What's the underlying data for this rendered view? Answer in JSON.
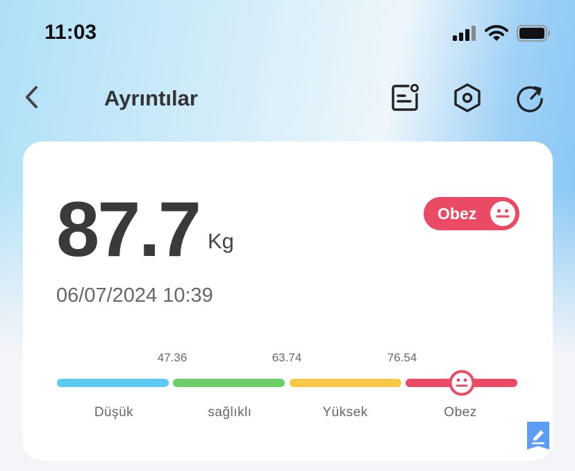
{
  "status_bar": {
    "time": "11:03"
  },
  "nav": {
    "title": "Ayrıntılar",
    "icons": [
      "back-arrow-icon",
      "report-icon",
      "settings-hex-icon",
      "refresh-icon"
    ]
  },
  "card": {
    "weight": "87.7",
    "unit": "Kg",
    "status": "Obez",
    "datetime": "06/07/2024 10:39",
    "scale": {
      "thresholds": [
        "47.36",
        "63.74",
        "76.54"
      ],
      "segments": [
        {
          "label": "Düşük",
          "color": "#5ccbf1"
        },
        {
          "label": "sağlıklı",
          "color": "#6dcf6a"
        },
        {
          "label": "Yüksek",
          "color": "#f9c846"
        },
        {
          "label": "Obez",
          "color": "#ea4a63"
        }
      ],
      "value": 87.7
    }
  },
  "colors": {
    "accent": "#ea4a63",
    "edit": "#5b9cf8"
  }
}
